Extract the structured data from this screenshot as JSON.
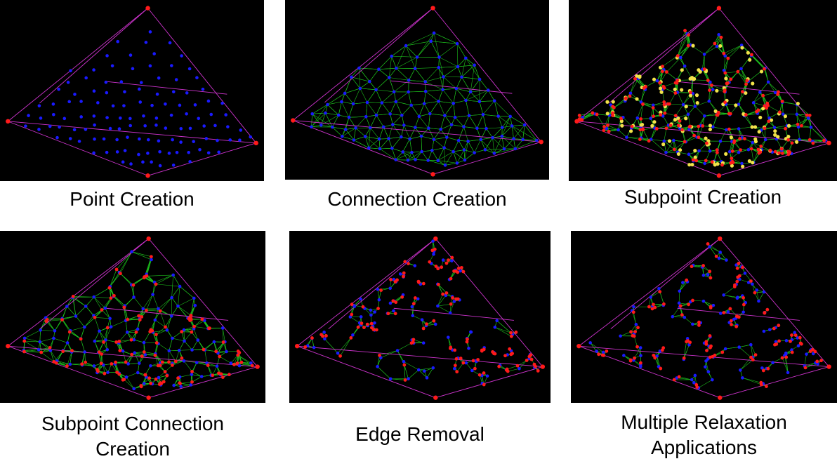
{
  "panels": [
    {
      "caption_lines": [
        "Point Creation"
      ],
      "stage": 1
    },
    {
      "caption_lines": [
        "Connection Creation"
      ],
      "stage": 2
    },
    {
      "caption_lines": [
        "Subpoint Creation"
      ],
      "stage": 3
    },
    {
      "caption_lines": [
        "Subpoint Connection",
        "Creation"
      ],
      "stage": 4
    },
    {
      "caption_lines": [
        "Edge Removal"
      ],
      "stage": 5
    },
    {
      "caption_lines": [
        "Multiple Relaxation",
        "Applications"
      ],
      "stage": 6
    }
  ],
  "colors": {
    "background": "#000000",
    "hull_edges": "#cc33cc",
    "connections": "#22dd22",
    "points": "#1a1aff",
    "subpoints": "#ff1a1a",
    "highlighted_subpoints": "#f2e24a"
  }
}
